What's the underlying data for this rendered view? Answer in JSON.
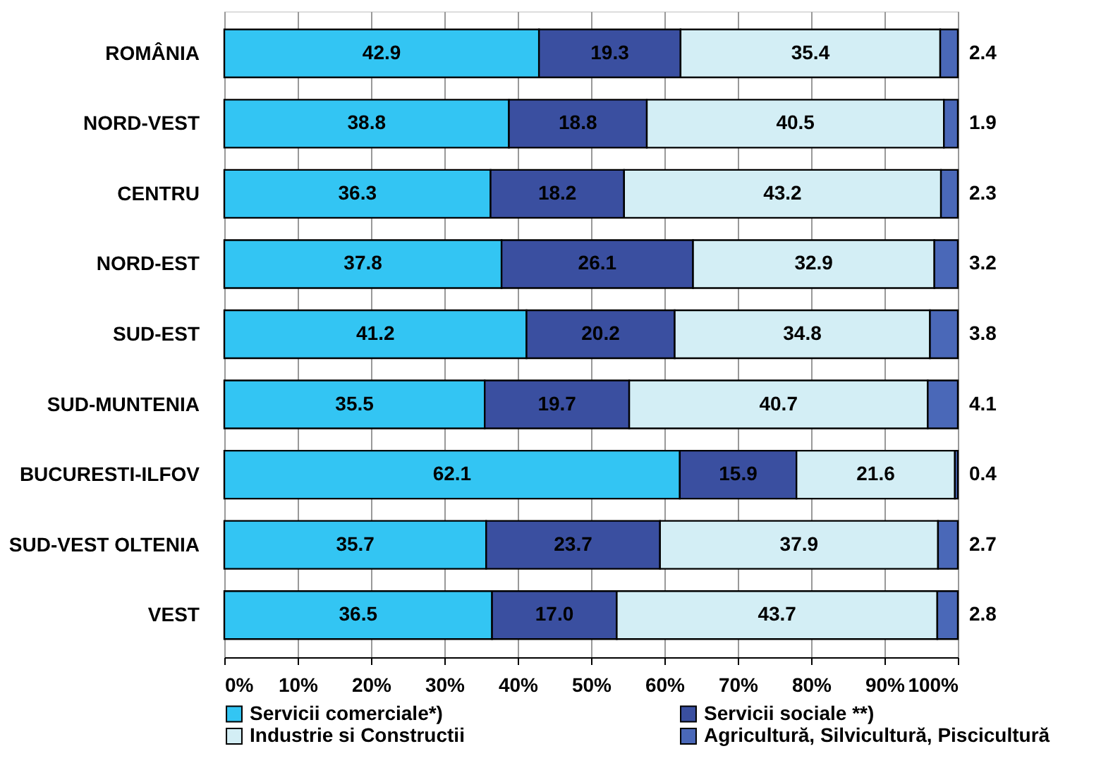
{
  "chart_data": {
    "type": "bar",
    "orientation": "horizontal",
    "stacked": true,
    "data_labels": true,
    "grid": "x",
    "legend": "bottom",
    "categories": [
      "ROMÂNIA",
      "NORD-VEST",
      "CENTRU",
      "NORD-EST",
      "SUD-EST",
      "SUD-MUNTENIA",
      "BUCURESTI-ILFOV",
      "SUD-VEST OLTENIA",
      "VEST"
    ],
    "series": [
      {
        "name": "Servicii comerciale*)",
        "color": "#33c5f3",
        "values": [
          42.9,
          38.8,
          36.3,
          37.8,
          41.2,
          35.5,
          62.1,
          35.7,
          36.5
        ]
      },
      {
        "name": "Servicii sociale **)",
        "color": "#3a4fa0",
        "values": [
          19.3,
          18.8,
          18.2,
          26.1,
          20.2,
          19.7,
          15.9,
          23.7,
          17.0
        ],
        "value_labels": [
          "19.3",
          "18.8",
          "18.2",
          "26.1",
          "20.2",
          "19.7",
          "15.9",
          "23.7",
          "17.0"
        ]
      },
      {
        "name": "Industrie si Constructii",
        "color": "#d3eef5",
        "values": [
          35.4,
          40.5,
          43.2,
          32.9,
          34.8,
          40.7,
          21.6,
          37.9,
          43.7
        ]
      },
      {
        "name": "Agricultură, Silvicultură, Piscicultură",
        "color": "#4a68b8",
        "values": [
          2.4,
          1.9,
          2.3,
          3.2,
          3.8,
          4.1,
          0.4,
          2.7,
          2.8
        ]
      }
    ],
    "xlim": [
      0,
      100
    ],
    "xticks": [
      {
        "value": 0,
        "label": "0%"
      },
      {
        "value": 10,
        "label": "10%"
      },
      {
        "value": 20,
        "label": "20%"
      },
      {
        "value": 30,
        "label": "30%"
      },
      {
        "value": 40,
        "label": "40%"
      },
      {
        "value": 50,
        "label": "50%"
      },
      {
        "value": 60,
        "label": "60%"
      },
      {
        "value": 70,
        "label": "70%"
      },
      {
        "value": 80,
        "label": "80%"
      },
      {
        "value": 90,
        "label": "90%"
      },
      {
        "value": 100,
        "label": "100%"
      }
    ]
  }
}
